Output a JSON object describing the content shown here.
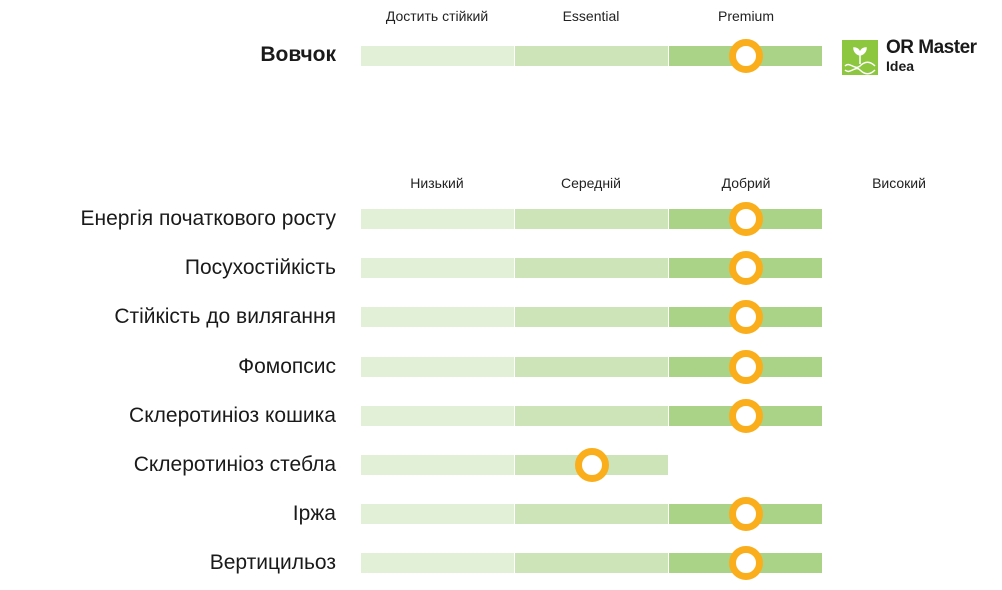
{
  "variety": {
    "name": "Вовчок",
    "headers": [
      "Достить стійкий",
      "Essential",
      "Premium"
    ],
    "level": 2,
    "segments": 3
  },
  "logo": {
    "line1": "OR Master",
    "line2": "Idea"
  },
  "scale_headers": [
    "Низький",
    "Середній",
    "Добрий",
    "Високий"
  ],
  "traits": [
    {
      "name": "Енергія початкового росту",
      "level": 2,
      "segments": 3
    },
    {
      "name": "Посухостійкість",
      "level": 2,
      "segments": 3
    },
    {
      "name": "Стійкість до вилягання",
      "level": 2,
      "segments": 3
    },
    {
      "name": "Фомопсис",
      "level": 2,
      "segments": 3
    },
    {
      "name": "Склеротиніоз кошика",
      "level": 2,
      "segments": 3
    },
    {
      "name": "Склеротиніоз стебла",
      "level": 1,
      "segments": 2
    },
    {
      "name": "Іржа",
      "level": 2,
      "segments": 3
    },
    {
      "name": "Вертицильоз",
      "level": 2,
      "segments": 3
    }
  ],
  "colors": {
    "marker": "#fbae1b",
    "seg1": "#e3f0d8",
    "seg2": "#cde4b8",
    "seg3": "#abd388",
    "logo": "#8dc63f"
  }
}
